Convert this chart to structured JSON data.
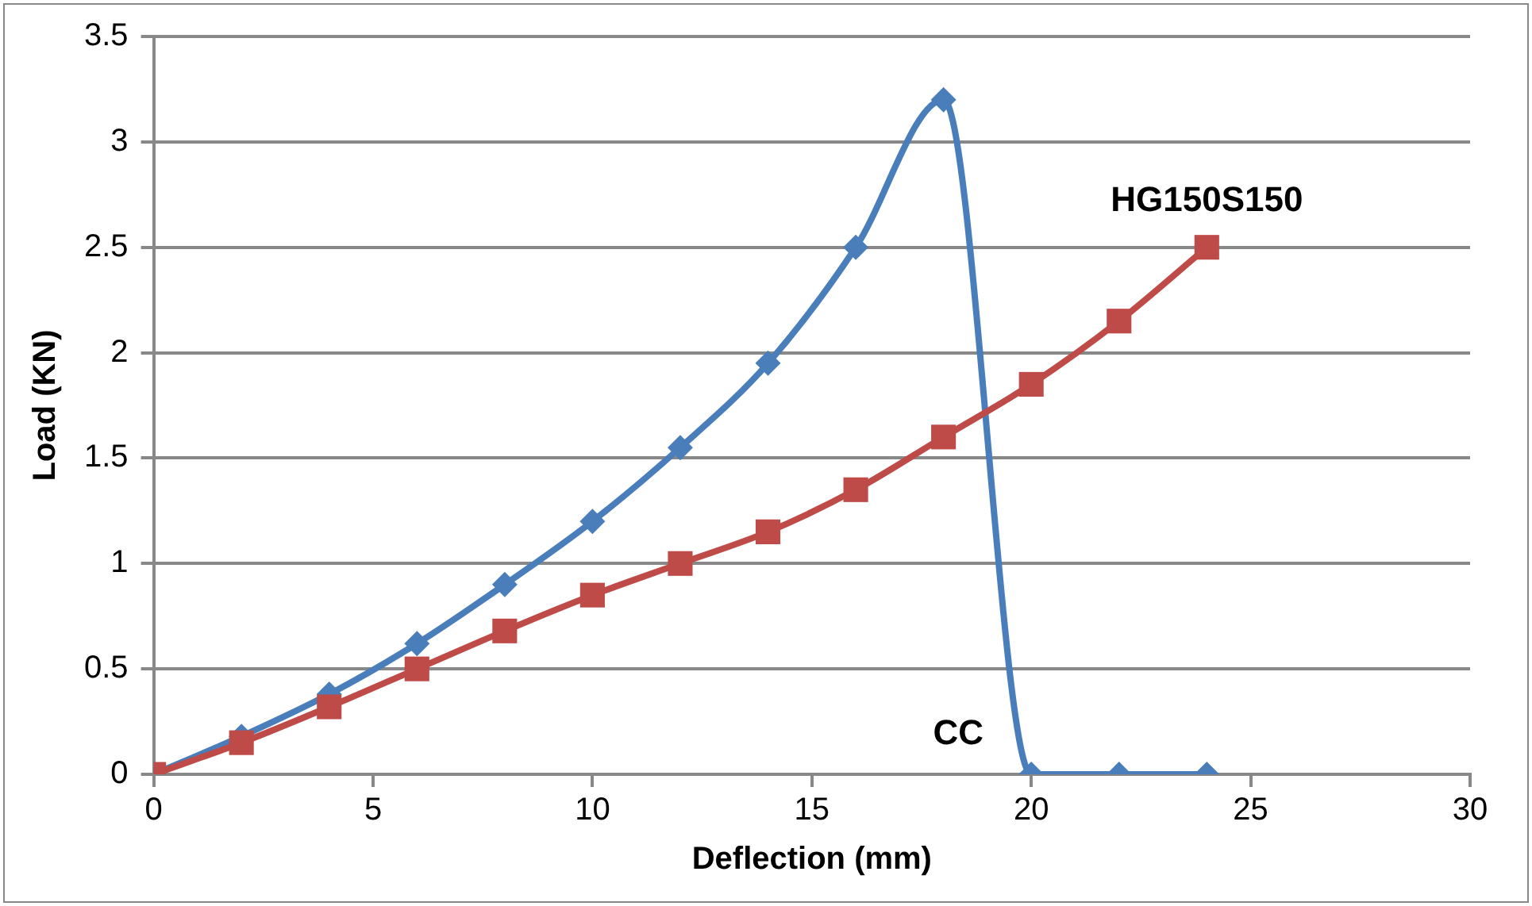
{
  "chart_data": {
    "type": "line",
    "xlabel": "Deflection (mm)",
    "ylabel": "Load (KN)",
    "xlim": [
      0,
      30
    ],
    "xticks": [
      0,
      5,
      10,
      15,
      20,
      25,
      30
    ],
    "ylim": [
      0,
      3.5
    ],
    "yticks": [
      0,
      0.5,
      1,
      1.5,
      2,
      2.5,
      3,
      3.5
    ],
    "grid": "y",
    "legend": false,
    "series": [
      {
        "name": "CC",
        "color": "#4a7ebb",
        "marker": "diamond",
        "x": [
          0,
          2,
          4,
          6,
          8,
          10,
          12,
          14,
          16,
          18,
          20,
          22,
          24
        ],
        "values": [
          0,
          0.18,
          0.38,
          0.62,
          0.9,
          1.2,
          1.55,
          1.95,
          2.5,
          3.2,
          0,
          0,
          0
        ]
      },
      {
        "name": "HG150S150",
        "color": "#be4b48",
        "marker": "square",
        "x": [
          0,
          2,
          4,
          6,
          8,
          10,
          12,
          14,
          16,
          18,
          20,
          22,
          24
        ],
        "values": [
          0,
          0.15,
          0.32,
          0.5,
          0.68,
          0.85,
          1.0,
          1.15,
          1.35,
          1.6,
          1.85,
          2.15,
          2.5
        ]
      }
    ]
  }
}
